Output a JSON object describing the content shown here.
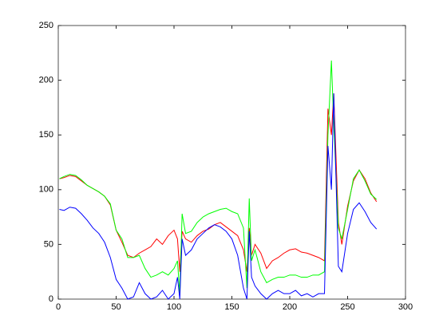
{
  "chart_data": {
    "type": "line",
    "x": [
      1,
      5,
      10,
      15,
      20,
      25,
      30,
      35,
      40,
      45,
      50,
      55,
      60,
      65,
      70,
      75,
      80,
      85,
      90,
      95,
      100,
      103,
      105,
      107,
      110,
      115,
      120,
      125,
      130,
      135,
      140,
      145,
      150,
      155,
      160,
      163,
      165,
      167,
      170,
      175,
      180,
      185,
      190,
      195,
      200,
      205,
      210,
      215,
      220,
      225,
      230,
      233,
      236,
      238,
      242,
      245,
      250,
      255,
      260,
      265,
      270,
      275
    ],
    "series": [
      {
        "color": "#ff0000",
        "values": [
          110,
          111,
          113,
          112,
          108,
          104,
          101,
          98,
          94,
          86,
          63,
          52,
          40,
          38,
          42,
          45,
          48,
          55,
          50,
          58,
          63,
          55,
          25,
          62,
          55,
          52,
          58,
          62,
          64,
          68,
          70,
          66,
          62,
          58,
          45,
          25,
          65,
          40,
          50,
          42,
          28,
          35,
          38,
          42,
          45,
          46,
          43,
          42,
          40,
          38,
          35,
          174,
          150,
          188,
          70,
          50,
          85,
          108,
          118,
          110,
          97,
          89
        ]
      },
      {
        "color": "#00ff00",
        "values": [
          110,
          112,
          114,
          113,
          109,
          104,
          101,
          98,
          94,
          87,
          63,
          55,
          38,
          38,
          40,
          28,
          20,
          22,
          25,
          22,
          28,
          35,
          5,
          78,
          60,
          62,
          70,
          75,
          78,
          80,
          82,
          83,
          80,
          78,
          65,
          10,
          92,
          35,
          45,
          25,
          15,
          18,
          20,
          20,
          22,
          22,
          20,
          20,
          22,
          22,
          25,
          150,
          218,
          160,
          65,
          55,
          82,
          110,
          118,
          108,
          96,
          91
        ]
      },
      {
        "color": "#0000ff",
        "values": [
          82,
          81,
          84,
          83,
          78,
          72,
          65,
          60,
          52,
          38,
          18,
          10,
          0,
          2,
          15,
          5,
          0,
          2,
          8,
          0,
          5,
          20,
          0,
          55,
          40,
          45,
          55,
          60,
          65,
          68,
          66,
          62,
          55,
          40,
          10,
          0,
          62,
          20,
          12,
          5,
          0,
          5,
          8,
          5,
          5,
          8,
          3,
          5,
          2,
          5,
          5,
          140,
          100,
          188,
          30,
          25,
          60,
          82,
          88,
          80,
          70,
          64
        ]
      }
    ],
    "xlim": [
      0,
      300
    ],
    "xticks": [
      0,
      50,
      100,
      150,
      200,
      250,
      300
    ],
    "ylim": [
      0,
      250
    ],
    "yticks": [
      0,
      50,
      100,
      150,
      200,
      250
    ],
    "box": true
  }
}
